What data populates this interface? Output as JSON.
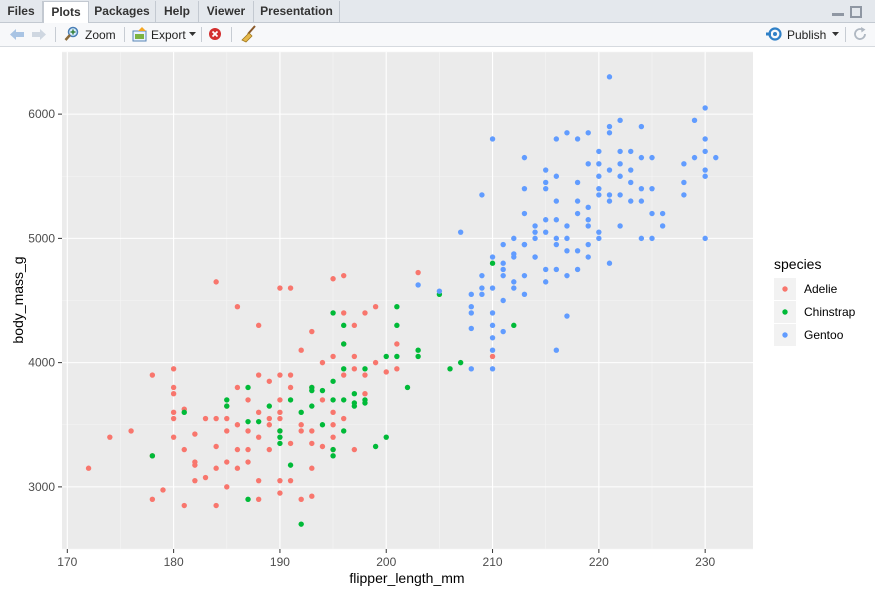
{
  "tabs": [
    {
      "label": "Files",
      "active": false
    },
    {
      "label": "Plots",
      "active": true
    },
    {
      "label": "Packages",
      "active": false
    },
    {
      "label": "Help",
      "active": false
    },
    {
      "label": "Viewer",
      "active": false
    },
    {
      "label": "Presentation",
      "active": false
    }
  ],
  "toolbar": {
    "zoom_label": "Zoom",
    "export_label": "Export",
    "publish_label": "Publish"
  },
  "icons": [
    "back-arrow-icon",
    "forward-arrow-icon",
    "zoom-icon",
    "export-icon",
    "remove-plot-icon",
    "broom-icon",
    "publish-icon",
    "refresh-icon",
    "minimize-icon",
    "maximize-icon"
  ],
  "chart_data": {
    "type": "scatter",
    "xlabel": "flipper_length_mm",
    "ylabel": "body_mass_g",
    "xlim": [
      169.5,
      234.5
    ],
    "ylim": [
      2500,
      6500
    ],
    "x_ticks": [
      170,
      180,
      190,
      200,
      210,
      220,
      230
    ],
    "y_ticks": [
      3000,
      4000,
      5000,
      6000
    ],
    "grid": true,
    "legend_title": "species",
    "legend_position": "right",
    "series": [
      {
        "name": "Adelie",
        "color": "#F8766D",
        "points": [
          [
            172,
            3150
          ],
          [
            174,
            3400
          ],
          [
            176,
            3450
          ],
          [
            178,
            3900
          ],
          [
            178,
            3250
          ],
          [
            178,
            2900
          ],
          [
            179,
            2975
          ],
          [
            180,
            3950
          ],
          [
            180,
            3800
          ],
          [
            180,
            3600
          ],
          [
            180,
            3750
          ],
          [
            180,
            3550
          ],
          [
            180,
            3400
          ],
          [
            181,
            3625
          ],
          [
            181,
            2850
          ],
          [
            181,
            3300
          ],
          [
            182,
            3425
          ],
          [
            182,
            3175
          ],
          [
            182,
            3200
          ],
          [
            182,
            3050
          ],
          [
            183,
            3075
          ],
          [
            183,
            3550
          ],
          [
            184,
            4650
          ],
          [
            184,
            3550
          ],
          [
            184,
            2850
          ],
          [
            184,
            3325
          ],
          [
            184,
            3150
          ],
          [
            185,
            3450
          ],
          [
            185,
            3650
          ],
          [
            185,
            3000
          ],
          [
            185,
            3200
          ],
          [
            185,
            3550
          ],
          [
            186,
            4450
          ],
          [
            186,
            3800
          ],
          [
            186,
            3500
          ],
          [
            186,
            3300
          ],
          [
            186,
            3150
          ],
          [
            187,
            3200
          ],
          [
            187,
            3700
          ],
          [
            187,
            3450
          ],
          [
            187,
            3300
          ],
          [
            188,
            2900
          ],
          [
            188,
            3050
          ],
          [
            188,
            3600
          ],
          [
            188,
            3400
          ],
          [
            188,
            4300
          ],
          [
            188,
            3900
          ],
          [
            189,
            3500
          ],
          [
            189,
            3850
          ],
          [
            189,
            3550
          ],
          [
            189,
            3300
          ],
          [
            190,
            4600
          ],
          [
            190,
            3450
          ],
          [
            190,
            3050
          ],
          [
            190,
            3900
          ],
          [
            190,
            3600
          ],
          [
            190,
            3700
          ],
          [
            190,
            2950
          ],
          [
            190,
            3550
          ],
          [
            191,
            4600
          ],
          [
            191,
            3800
          ],
          [
            191,
            3350
          ],
          [
            191,
            3900
          ],
          [
            191,
            3050
          ],
          [
            192,
            3450
          ],
          [
            192,
            4100
          ],
          [
            192,
            3500
          ],
          [
            192,
            2900
          ],
          [
            193,
            3150
          ],
          [
            193,
            3800
          ],
          [
            193,
            4250
          ],
          [
            193,
            3450
          ],
          [
            193,
            2925
          ],
          [
            193,
            3350
          ],
          [
            194,
            4000
          ],
          [
            194,
            3700
          ],
          [
            194,
            3325
          ],
          [
            195,
            4675
          ],
          [
            195,
            4050
          ],
          [
            195,
            3600
          ],
          [
            195,
            3400
          ],
          [
            195,
            3500
          ],
          [
            195,
            3300
          ],
          [
            196,
            4400
          ],
          [
            196,
            4150
          ],
          [
            196,
            3900
          ],
          [
            196,
            4700
          ],
          [
            196,
            3550
          ],
          [
            197,
            4300
          ],
          [
            197,
            3950
          ],
          [
            197,
            4050
          ],
          [
            197,
            3300
          ],
          [
            198,
            3900
          ],
          [
            198,
            4400
          ],
          [
            198,
            3750
          ],
          [
            199,
            4000
          ],
          [
            199,
            4450
          ],
          [
            200,
            3925
          ],
          [
            201,
            4150
          ],
          [
            201,
            3950
          ],
          [
            203,
            4725
          ],
          [
            210,
            4050
          ]
        ]
      },
      {
        "name": "Chinstrap",
        "color": "#00BA38",
        "points": [
          [
            178,
            3250
          ],
          [
            181,
            3600
          ],
          [
            185,
            3700
          ],
          [
            185,
            3650
          ],
          [
            187,
            3525
          ],
          [
            187,
            2900
          ],
          [
            187,
            3800
          ],
          [
            188,
            3525
          ],
          [
            189,
            3650
          ],
          [
            190,
            3450
          ],
          [
            190,
            3400
          ],
          [
            190,
            3350
          ],
          [
            191,
            3700
          ],
          [
            191,
            3175
          ],
          [
            192,
            2700
          ],
          [
            192,
            3600
          ],
          [
            193,
            3800
          ],
          [
            193,
            3775
          ],
          [
            193,
            3650
          ],
          [
            194,
            3500
          ],
          [
            194,
            3775
          ],
          [
            195,
            3250
          ],
          [
            195,
            3300
          ],
          [
            195,
            3700
          ],
          [
            195,
            3850
          ],
          [
            195,
            4400
          ],
          [
            196,
            3700
          ],
          [
            196,
            3950
          ],
          [
            196,
            4150
          ],
          [
            196,
            3450
          ],
          [
            196,
            4300
          ],
          [
            197,
            3675
          ],
          [
            197,
            3650
          ],
          [
            197,
            3750
          ],
          [
            198,
            3950
          ],
          [
            198,
            3675
          ],
          [
            198,
            3700
          ],
          [
            199,
            3325
          ],
          [
            200,
            4050
          ],
          [
            200,
            3400
          ],
          [
            201,
            4450
          ],
          [
            201,
            4300
          ],
          [
            201,
            4050
          ],
          [
            202,
            3800
          ],
          [
            203,
            4050
          ],
          [
            203,
            4100
          ],
          [
            205,
            4550
          ],
          [
            206,
            3950
          ],
          [
            207,
            4000
          ],
          [
            210,
            4800
          ],
          [
            212,
            4300
          ]
        ]
      },
      {
        "name": "Gentoo",
        "color": "#619CFF",
        "points": [
          [
            203,
            4625
          ],
          [
            205,
            4575
          ],
          [
            207,
            5050
          ],
          [
            208,
            4550
          ],
          [
            208,
            4450
          ],
          [
            208,
            4400
          ],
          [
            208,
            4275
          ],
          [
            208,
            3950
          ],
          [
            209,
            5350
          ],
          [
            209,
            4600
          ],
          [
            210,
            5800
          ],
          [
            210,
            4200
          ],
          [
            210,
            4100
          ],
          [
            210,
            3950
          ],
          [
            210,
            4300
          ],
          [
            210,
            4600
          ],
          [
            210,
            4400
          ],
          [
            211,
            4800
          ],
          [
            211,
            4500
          ],
          [
            211,
            4250
          ],
          [
            211,
            4700
          ],
          [
            212,
            4850
          ],
          [
            212,
            5000
          ],
          [
            213,
            4700
          ],
          [
            213,
            5200
          ],
          [
            213,
            4550
          ],
          [
            214,
            4850
          ],
          [
            214,
            5050
          ],
          [
            215,
            5550
          ],
          [
            215,
            5150
          ],
          [
            215,
            4650
          ],
          [
            216,
            4750
          ],
          [
            216,
            4100
          ],
          [
            217,
            4900
          ],
          [
            217,
            4375
          ],
          [
            218,
            5200
          ],
          [
            218,
            4750
          ],
          [
            219,
            5250
          ],
          [
            219,
            4950
          ],
          [
            220,
            5400
          ],
          [
            220,
            5000
          ],
          [
            221,
            5550
          ],
          [
            221,
            4800
          ],
          [
            222,
            5350
          ],
          [
            222,
            5100
          ],
          [
            223,
            5550
          ],
          [
            224,
            5300
          ],
          [
            225,
            5200
          ],
          [
            226,
            5200
          ],
          [
            228,
            5350
          ],
          [
            228,
            5600
          ],
          [
            229,
            5950
          ],
          [
            230,
            5500
          ],
          [
            230,
            5550
          ],
          [
            230,
            5700
          ],
          [
            230,
            5800
          ],
          [
            230,
            6050
          ],
          [
            231,
            5650
          ],
          [
            218,
            5800
          ],
          [
            219,
            5600
          ],
          [
            220,
            5700
          ],
          [
            221,
            6300
          ],
          [
            221,
            5900
          ],
          [
            222,
            5950
          ],
          [
            223,
            5700
          ],
          [
            224,
            5650
          ],
          [
            225,
            5400
          ],
          [
            214,
            5000
          ],
          [
            215,
            5400
          ],
          [
            216,
            5500
          ],
          [
            217,
            5850
          ],
          [
            218,
            5300
          ],
          [
            219,
            5100
          ],
          [
            216,
            5300
          ],
          [
            212,
            4875
          ],
          [
            213,
            5400
          ],
          [
            214,
            5100
          ],
          [
            209,
            4700
          ],
          [
            211,
            4750
          ],
          [
            212,
            4650
          ],
          [
            213,
            4950
          ],
          [
            215,
            5050
          ],
          [
            216,
            5000
          ],
          [
            217,
            5100
          ],
          [
            218,
            5450
          ],
          [
            219,
            5150
          ],
          [
            220,
            5600
          ],
          [
            221,
            5300
          ],
          [
            222,
            5700
          ],
          [
            223,
            5450
          ],
          [
            224,
            5000
          ],
          [
            225,
            5000
          ],
          [
            226,
            5100
          ],
          [
            228,
            5450
          ],
          [
            229,
            5650
          ],
          [
            215,
            4750
          ],
          [
            214,
            4850
          ],
          [
            220,
            5050
          ],
          [
            222,
            5600
          ],
          [
            219,
            4850
          ],
          [
            217,
            5000
          ],
          [
            216,
            4950
          ],
          [
            213,
            4950
          ],
          [
            212,
            4600
          ],
          [
            211,
            4950
          ],
          [
            210,
            4850
          ],
          [
            209,
            4550
          ],
          [
            215,
            5450
          ],
          [
            217,
            4700
          ],
          [
            218,
            4900
          ],
          [
            220,
            5350
          ],
          [
            221,
            5350
          ],
          [
            223,
            5300
          ],
          [
            224,
            5900
          ],
          [
            225,
            5650
          ],
          [
            219,
            5850
          ],
          [
            216,
            5800
          ],
          [
            213,
            5650
          ],
          [
            220,
            5500
          ],
          [
            222,
            5500
          ],
          [
            221,
            5850
          ],
          [
            230,
            5000
          ],
          [
            224,
            5400
          ],
          [
            216,
            5150
          ]
        ]
      }
    ]
  }
}
